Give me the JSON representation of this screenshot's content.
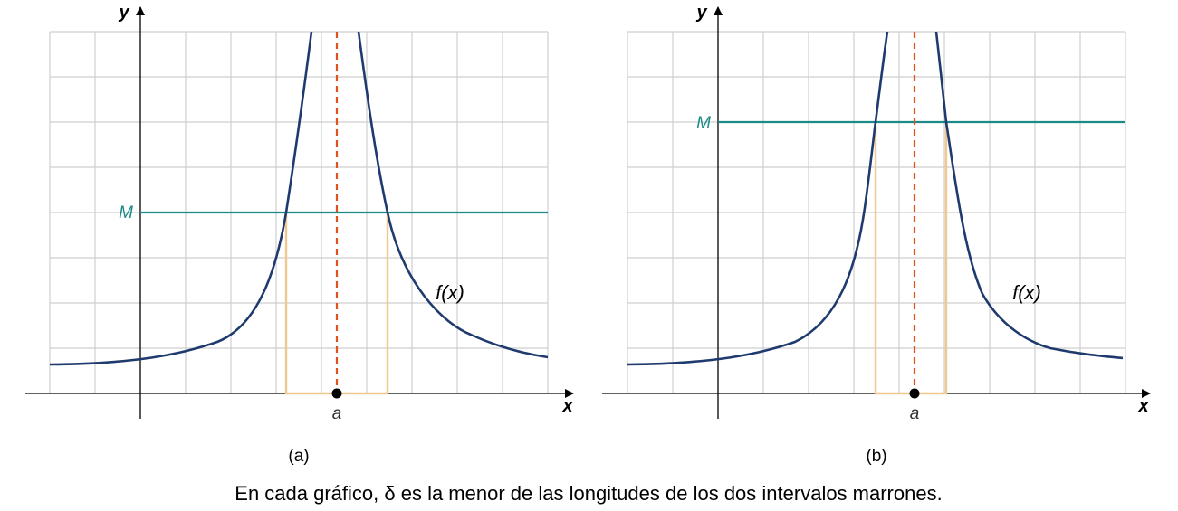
{
  "panels": [
    {
      "id": "a",
      "sublabel": "(a)",
      "m_label": "M",
      "a_label": "a",
      "f_label": "f(x)",
      "x_label": "x",
      "y_label": "y"
    },
    {
      "id": "b",
      "sublabel": "(b)",
      "m_label": "M",
      "a_label": "a",
      "f_label": "f(x)",
      "x_label": "x",
      "y_label": "y"
    }
  ],
  "caption": "En cada gráfico, δ es la menor de las longitudes de los dos intervalos marrones.",
  "colors": {
    "curve": "#1f3a6e",
    "m_line": "#1e8a88",
    "asymptote": "#e2501c",
    "intervals": "#f1c98f",
    "grid": "#cfcfcf"
  }
}
